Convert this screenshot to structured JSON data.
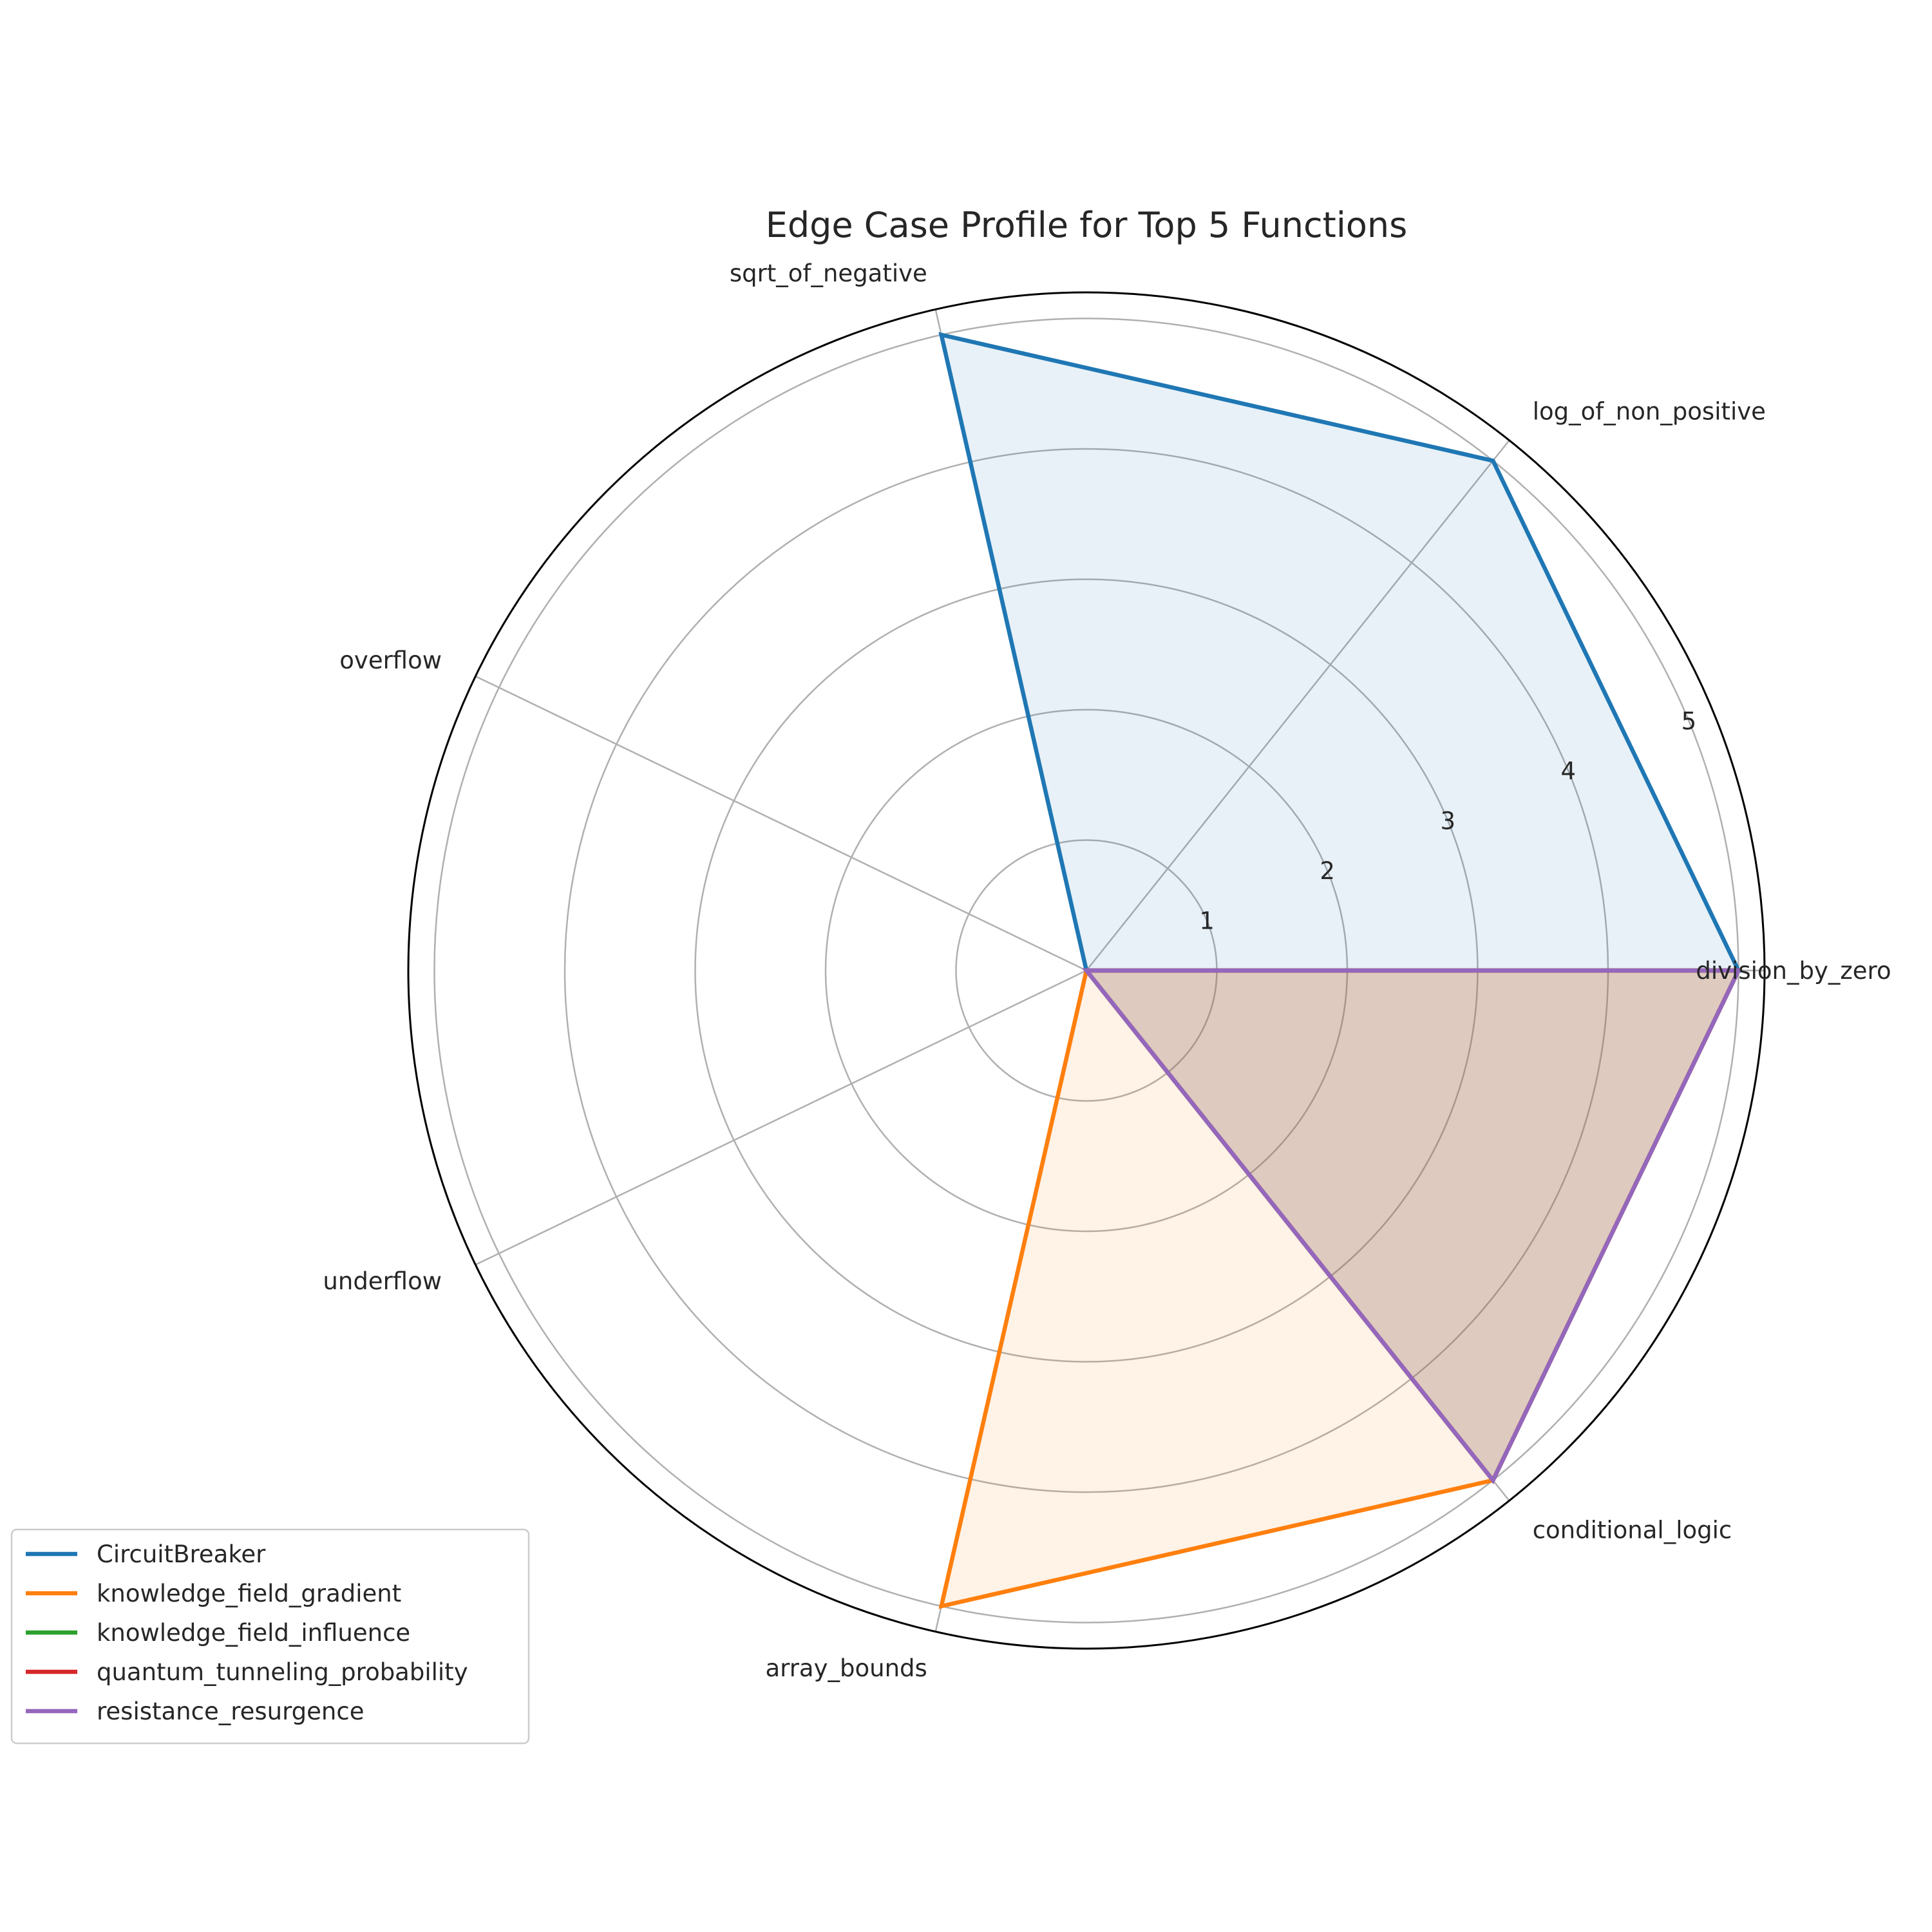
{
  "chart_data": {
    "type": "radar",
    "title": "Edge Case Profile for Top 5 Functions",
    "categories": [
      "division_by_zero",
      "log_of_non_positive",
      "sqrt_of_negative",
      "overflow",
      "underflow",
      "array_bounds",
      "conditional_logic"
    ],
    "r_ticks": [
      1,
      2,
      3,
      4,
      5
    ],
    "rlim": [
      0,
      5.2
    ],
    "grid": true,
    "legend_position": "lower-left",
    "series": [
      {
        "name": "CircuitBreaker",
        "color": "#1f77b4",
        "values": [
          5,
          5,
          5,
          0,
          0,
          0,
          0
        ]
      },
      {
        "name": "knowledge_field_gradient",
        "color": "#ff7f0e",
        "values": [
          5,
          0,
          0,
          0,
          0,
          5,
          5
        ]
      },
      {
        "name": "knowledge_field_influence",
        "color": "#2ca02c",
        "values": [
          5,
          0,
          0,
          0,
          0,
          0,
          5
        ]
      },
      {
        "name": "quantum_tunneling_probability",
        "color": "#d62728",
        "values": [
          5,
          0,
          0,
          0,
          0,
          0,
          5
        ]
      },
      {
        "name": "resistance_resurgence",
        "color": "#9467bd",
        "values": [
          5,
          0,
          0,
          0,
          0,
          0,
          5
        ]
      }
    ]
  }
}
